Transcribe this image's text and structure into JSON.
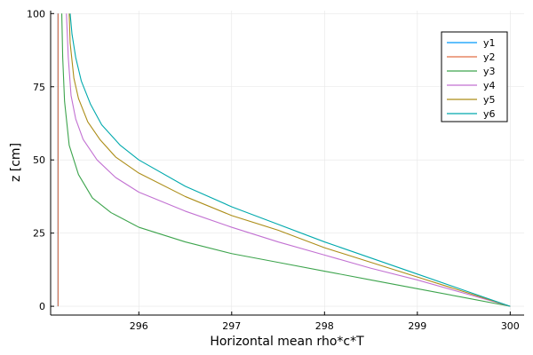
{
  "chart_data": {
    "type": "line",
    "title": "",
    "xlabel": "Horizontal mean rho*c*T",
    "ylabel": "z [cm]",
    "xlim": [
      295.05,
      300.15
    ],
    "ylim": [
      -3,
      101
    ],
    "xticks": [
      296,
      297,
      298,
      299,
      300
    ],
    "yticks": [
      0,
      25,
      50,
      75,
      100
    ],
    "grid": true,
    "legend_position": "top-right",
    "series": [
      {
        "name": "y1",
        "color": "#009af9",
        "points": [
          [
            295.13,
            0
          ],
          [
            295.13,
            100
          ]
        ]
      },
      {
        "name": "y2",
        "color": "#e26f46",
        "points": [
          [
            295.13,
            0
          ],
          [
            295.13,
            100
          ]
        ]
      },
      {
        "name": "y3",
        "color": "#3da44d",
        "points": [
          [
            300.0,
            0
          ],
          [
            299.5,
            3
          ],
          [
            299.0,
            6
          ],
          [
            298.5,
            9
          ],
          [
            298.0,
            12
          ],
          [
            297.5,
            15
          ],
          [
            297.0,
            18
          ],
          [
            296.5,
            22
          ],
          [
            296.0,
            27
          ],
          [
            295.7,
            32
          ],
          [
            295.5,
            37
          ],
          [
            295.35,
            45
          ],
          [
            295.25,
            55
          ],
          [
            295.2,
            70
          ],
          [
            295.18,
            85
          ],
          [
            295.17,
            100
          ]
        ]
      },
      {
        "name": "y4",
        "color": "#c271d2",
        "points": [
          [
            300.0,
            0
          ],
          [
            299.5,
            4.5
          ],
          [
            299.0,
            9
          ],
          [
            298.5,
            13
          ],
          [
            298.0,
            17.5
          ],
          [
            297.5,
            22
          ],
          [
            297.0,
            27
          ],
          [
            296.5,
            32.5
          ],
          [
            296.0,
            39
          ],
          [
            295.75,
            44
          ],
          [
            295.55,
            50
          ],
          [
            295.4,
            57
          ],
          [
            295.32,
            64
          ],
          [
            295.27,
            72
          ],
          [
            295.24,
            85
          ],
          [
            295.22,
            100
          ]
        ]
      },
      {
        "name": "y5",
        "color": "#ac8d18",
        "points": [
          [
            300.0,
            0
          ],
          [
            299.5,
            5
          ],
          [
            299.0,
            10
          ],
          [
            298.5,
            15
          ],
          [
            298.0,
            20
          ],
          [
            297.5,
            26
          ],
          [
            297.0,
            31
          ],
          [
            296.5,
            37.5
          ],
          [
            296.0,
            45.5
          ],
          [
            295.75,
            51
          ],
          [
            295.58,
            57
          ],
          [
            295.45,
            63
          ],
          [
            295.35,
            71
          ],
          [
            295.3,
            78
          ],
          [
            295.26,
            90
          ],
          [
            295.25,
            100
          ]
        ]
      },
      {
        "name": "y6",
        "color": "#00a9ad",
        "points": [
          [
            300.0,
            0
          ],
          [
            299.5,
            5.5
          ],
          [
            299.0,
            11
          ],
          [
            298.5,
            16.5
          ],
          [
            298.0,
            22
          ],
          [
            297.5,
            28
          ],
          [
            297.0,
            34
          ],
          [
            296.5,
            41
          ],
          [
            296.0,
            50
          ],
          [
            295.8,
            55
          ],
          [
            295.6,
            62
          ],
          [
            295.48,
            69
          ],
          [
            295.38,
            77
          ],
          [
            295.32,
            85
          ],
          [
            295.28,
            93
          ],
          [
            295.26,
            100
          ]
        ]
      }
    ]
  }
}
